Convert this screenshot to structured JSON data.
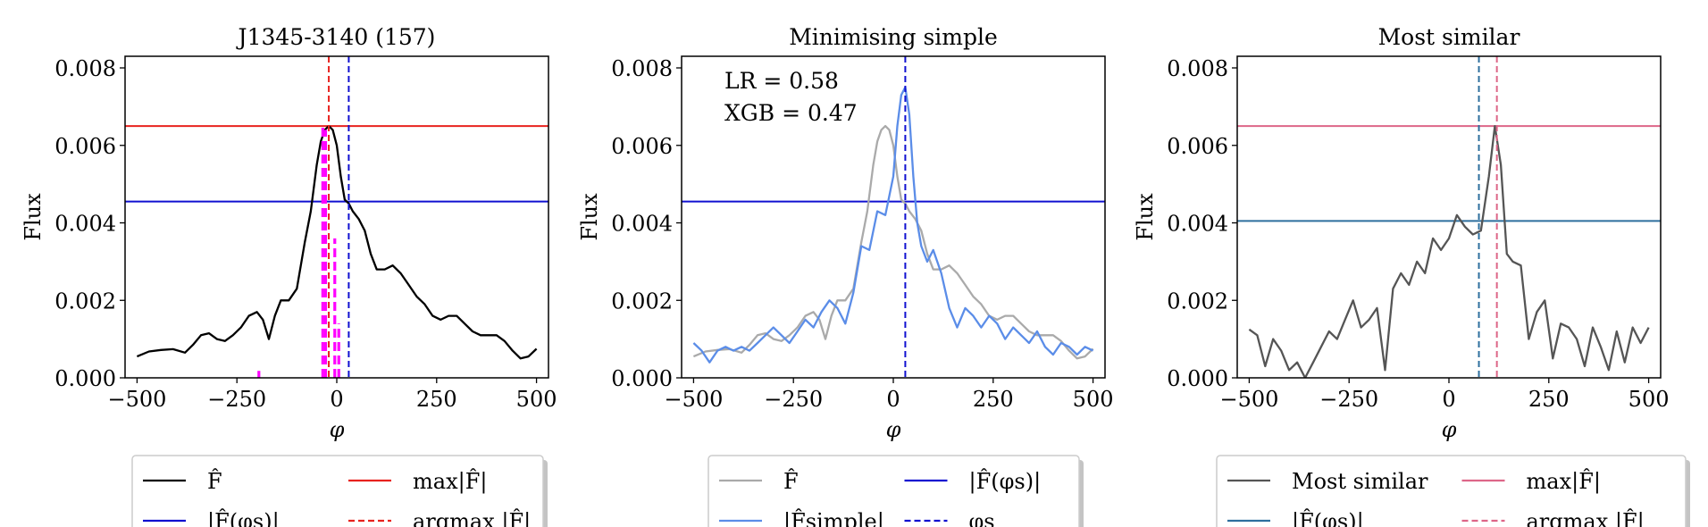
{
  "chart_data": [
    {
      "type": "line",
      "title": "J1345-3140 (157)",
      "xlabel": "φ",
      "ylabel": "Flux",
      "xlim": [
        -530,
        530
      ],
      "ylim": [
        0,
        0.0083
      ],
      "xticks": [
        -500,
        -250,
        0,
        250,
        500
      ],
      "xtick_labels": [
        "−500",
        "−250",
        "0",
        "250",
        "500"
      ],
      "yticks": [
        0,
        0.002,
        0.004,
        0.006,
        0.008
      ],
      "ytick_labels": [
        "0.000",
        "0.002",
        "0.004",
        "0.006",
        "0.008"
      ],
      "series": [
        {
          "name": "F̂",
          "color": "#000000",
          "style": "solid",
          "x": [
            -500,
            -470,
            -440,
            -410,
            -380,
            -360,
            -340,
            -320,
            -300,
            -280,
            -260,
            -240,
            -220,
            -200,
            -185,
            -170,
            -155,
            -140,
            -120,
            -100,
            -80,
            -65,
            -50,
            -40,
            -30,
            -20,
            -10,
            0,
            10,
            20,
            30,
            40,
            55,
            70,
            85,
            100,
            120,
            140,
            160,
            180,
            200,
            220,
            240,
            260,
            280,
            300,
            320,
            340,
            360,
            380,
            400,
            420,
            440,
            460,
            480,
            500
          ],
          "y": [
            0.00055,
            0.00068,
            0.00072,
            0.00074,
            0.00065,
            0.00085,
            0.0011,
            0.00115,
            0.001,
            0.00095,
            0.0011,
            0.0013,
            0.0016,
            0.0017,
            0.0015,
            0.001,
            0.0016,
            0.002,
            0.002,
            0.0023,
            0.0035,
            0.0043,
            0.0055,
            0.0061,
            0.0064,
            0.0065,
            0.0064,
            0.006,
            0.0052,
            0.0046,
            0.0045,
            0.0043,
            0.0041,
            0.0038,
            0.0032,
            0.0028,
            0.0028,
            0.0029,
            0.0027,
            0.0024,
            0.0021,
            0.0019,
            0.0016,
            0.0015,
            0.0016,
            0.0016,
            0.0014,
            0.0012,
            0.0011,
            0.0011,
            0.0011,
            0.00095,
            0.0007,
            0.0005,
            0.00055,
            0.00075
          ]
        }
      ],
      "hlines": [
        {
          "name": "max|F̂|",
          "y": 0.0065,
          "color": "#e8221e",
          "style": "solid"
        },
        {
          "name": "|F̂(φs)|",
          "y": 0.00455,
          "color": "#1010d0",
          "style": "solid"
        }
      ],
      "vlines": [
        {
          "name": "argmax |F̂|",
          "x": -20,
          "color": "#e8221e",
          "style": "dashed"
        },
        {
          "name": "φs",
          "x": 30,
          "color": "#1010d0",
          "style": "dashed"
        }
      ],
      "magenta_marks": [
        {
          "x": -195,
          "y0": 0,
          "y1": 0.00018
        },
        {
          "x": -35,
          "y0": 0,
          "y1": 0.0065
        },
        {
          "x": -28,
          "y0": 0,
          "y1": 0.0064
        },
        {
          "x": -5,
          "y0": 0,
          "y1": 0.0036
        },
        {
          "x": 5,
          "y0": 0,
          "y1": 0.0014
        }
      ],
      "legend": {
        "placement": "below",
        "entries": [
          {
            "label": "F̂",
            "color": "#000000",
            "style": "solid"
          },
          {
            "label": "max|F̂|",
            "color": "#e8221e",
            "style": "solid"
          },
          {
            "label": "|F̂(φs)|",
            "color": "#1010d0",
            "style": "solid"
          },
          {
            "label": "argmax |F̂|",
            "color": "#e8221e",
            "style": "dashed"
          }
        ]
      }
    },
    {
      "type": "line",
      "title": "Minimising simple",
      "xlabel": "φ",
      "ylabel": "Flux",
      "xlim": [
        -530,
        530
      ],
      "ylim": [
        0,
        0.0083
      ],
      "xticks": [
        -500,
        -250,
        0,
        250,
        500
      ],
      "xtick_labels": [
        "−500",
        "−250",
        "0",
        "250",
        "500"
      ],
      "yticks": [
        0,
        0.002,
        0.004,
        0.006,
        0.008
      ],
      "ytick_labels": [
        "0.000",
        "0.002",
        "0.004",
        "0.006",
        "0.008"
      ],
      "annotations": [
        "LR = 0.58",
        "XGB = 0.47"
      ],
      "series": [
        {
          "name": "F̂",
          "color": "#aaaaaa",
          "style": "solid",
          "x": [
            -500,
            -470,
            -440,
            -410,
            -380,
            -360,
            -340,
            -320,
            -300,
            -280,
            -260,
            -240,
            -220,
            -200,
            -185,
            -170,
            -155,
            -140,
            -120,
            -100,
            -80,
            -65,
            -50,
            -40,
            -30,
            -20,
            -10,
            0,
            10,
            20,
            30,
            40,
            55,
            70,
            85,
            100,
            120,
            140,
            160,
            180,
            200,
            220,
            240,
            260,
            280,
            300,
            320,
            340,
            360,
            380,
            400,
            420,
            440,
            460,
            480,
            500
          ],
          "y": [
            0.00055,
            0.00068,
            0.00072,
            0.00074,
            0.00065,
            0.00085,
            0.0011,
            0.00115,
            0.001,
            0.00095,
            0.0011,
            0.0013,
            0.0016,
            0.0017,
            0.0015,
            0.001,
            0.0016,
            0.002,
            0.002,
            0.0023,
            0.0035,
            0.0043,
            0.0055,
            0.0061,
            0.0064,
            0.0065,
            0.0064,
            0.006,
            0.0052,
            0.0046,
            0.0045,
            0.0043,
            0.0041,
            0.0038,
            0.0032,
            0.0028,
            0.0028,
            0.0029,
            0.0027,
            0.0024,
            0.0021,
            0.0019,
            0.0016,
            0.0015,
            0.0016,
            0.0016,
            0.0014,
            0.0012,
            0.0011,
            0.0011,
            0.0011,
            0.00095,
            0.0007,
            0.0005,
            0.00055,
            0.00075
          ]
        },
        {
          "name": "|F̂simple|",
          "color": "#5b8de8",
          "style": "solid",
          "x": [
            -500,
            -480,
            -460,
            -440,
            -420,
            -400,
            -380,
            -360,
            -340,
            -320,
            -300,
            -280,
            -260,
            -240,
            -220,
            -200,
            -180,
            -160,
            -140,
            -120,
            -100,
            -80,
            -60,
            -40,
            -20,
            0,
            10,
            20,
            30,
            40,
            50,
            60,
            70,
            85,
            100,
            120,
            140,
            160,
            180,
            200,
            220,
            240,
            260,
            280,
            300,
            320,
            340,
            360,
            380,
            400,
            420,
            440,
            460,
            480,
            500
          ],
          "y": [
            0.0009,
            0.0007,
            0.0004,
            0.0007,
            0.0008,
            0.0007,
            0.0008,
            0.0007,
            0.0009,
            0.0011,
            0.0013,
            0.0011,
            0.0009,
            0.0012,
            0.0015,
            0.0013,
            0.0017,
            0.002,
            0.0018,
            0.0014,
            0.0022,
            0.0034,
            0.0033,
            0.0043,
            0.0042,
            0.0052,
            0.0065,
            0.0073,
            0.0075,
            0.0068,
            0.0052,
            0.004,
            0.0034,
            0.003,
            0.0033,
            0.0027,
            0.0018,
            0.0013,
            0.0018,
            0.0016,
            0.0013,
            0.0016,
            0.0014,
            0.001,
            0.0013,
            0.0011,
            0.0009,
            0.0012,
            0.0008,
            0.0006,
            0.0009,
            0.0008,
            0.0006,
            0.0008,
            0.0007
          ]
        }
      ],
      "hlines": [
        {
          "name": "|F̂(φs)|",
          "y": 0.00455,
          "color": "#1010d0",
          "style": "solid"
        }
      ],
      "vlines": [
        {
          "name": "φs",
          "x": 30,
          "color": "#1010d0",
          "style": "dashed"
        }
      ],
      "legend": {
        "placement": "below",
        "entries": [
          {
            "label": "F̂",
            "color": "#aaaaaa",
            "style": "solid"
          },
          {
            "label": "|F̂(φs)|",
            "color": "#1010d0",
            "style": "solid"
          },
          {
            "label": "|F̂simple|",
            "color": "#5b8de8",
            "style": "solid"
          },
          {
            "label": "φs",
            "color": "#1010d0",
            "style": "dashed"
          }
        ]
      }
    },
    {
      "type": "line",
      "title": "Most similar",
      "xlabel": "φ",
      "ylabel": "Flux",
      "xlim": [
        -530,
        530
      ],
      "ylim": [
        0,
        0.0083
      ],
      "xticks": [
        -500,
        -250,
        0,
        250,
        500
      ],
      "xtick_labels": [
        "−500",
        "−250",
        "0",
        "250",
        "500"
      ],
      "yticks": [
        0,
        0.002,
        0.004,
        0.006,
        0.008
      ],
      "ytick_labels": [
        "0.000",
        "0.002",
        "0.004",
        "0.006",
        "0.008"
      ],
      "series": [
        {
          "name": "Most similar",
          "color": "#555555",
          "style": "solid",
          "x": [
            -500,
            -480,
            -460,
            -440,
            -420,
            -400,
            -380,
            -360,
            -340,
            -320,
            -300,
            -280,
            -260,
            -240,
            -220,
            -200,
            -180,
            -160,
            -140,
            -120,
            -100,
            -80,
            -60,
            -40,
            -20,
            0,
            20,
            40,
            60,
            80,
            100,
            115,
            130,
            145,
            160,
            180,
            200,
            220,
            240,
            260,
            280,
            300,
            320,
            340,
            360,
            380,
            400,
            420,
            440,
            460,
            480,
            500
          ],
          "y": [
            0.00125,
            0.0011,
            0.0003,
            0.001,
            0.0007,
            0.0002,
            0.0004,
            0.0,
            0.0004,
            0.0008,
            0.0012,
            0.001,
            0.0015,
            0.002,
            0.0013,
            0.0015,
            0.0018,
            0.0002,
            0.0023,
            0.0027,
            0.0024,
            0.003,
            0.0027,
            0.0036,
            0.0033,
            0.0036,
            0.0042,
            0.0039,
            0.0037,
            0.0038,
            0.0052,
            0.0065,
            0.0055,
            0.0032,
            0.003,
            0.0029,
            0.001,
            0.0017,
            0.002,
            0.0005,
            0.0014,
            0.0013,
            0.001,
            0.0003,
            0.0013,
            0.0008,
            0.0002,
            0.0012,
            0.0004,
            0.0013,
            0.0009,
            0.0013
          ]
        }
      ],
      "hlines": [
        {
          "name": "max|F̂|",
          "y": 0.0065,
          "color": "#dd6688",
          "style": "solid"
        },
        {
          "name": "|F̂(φs)|",
          "y": 0.00405,
          "color": "#2e6f9e",
          "style": "solid"
        }
      ],
      "vlines": [
        {
          "name": "φs",
          "x": 75,
          "color": "#2e6f9e",
          "style": "dashed"
        },
        {
          "name": "argmax |F̂|",
          "x": 120,
          "color": "#dd6688",
          "style": "dashed"
        }
      ],
      "legend": {
        "placement": "below",
        "entries": [
          {
            "label": "Most similar",
            "color": "#555555",
            "style": "solid"
          },
          {
            "label": "max|F̂|",
            "color": "#dd6688",
            "style": "solid"
          },
          {
            "label": "|F̂(φs)|",
            "color": "#2e6f9e",
            "style": "solid"
          },
          {
            "label": "argmax |F̂|",
            "color": "#dd6688",
            "style": "dashed"
          }
        ]
      }
    }
  ]
}
